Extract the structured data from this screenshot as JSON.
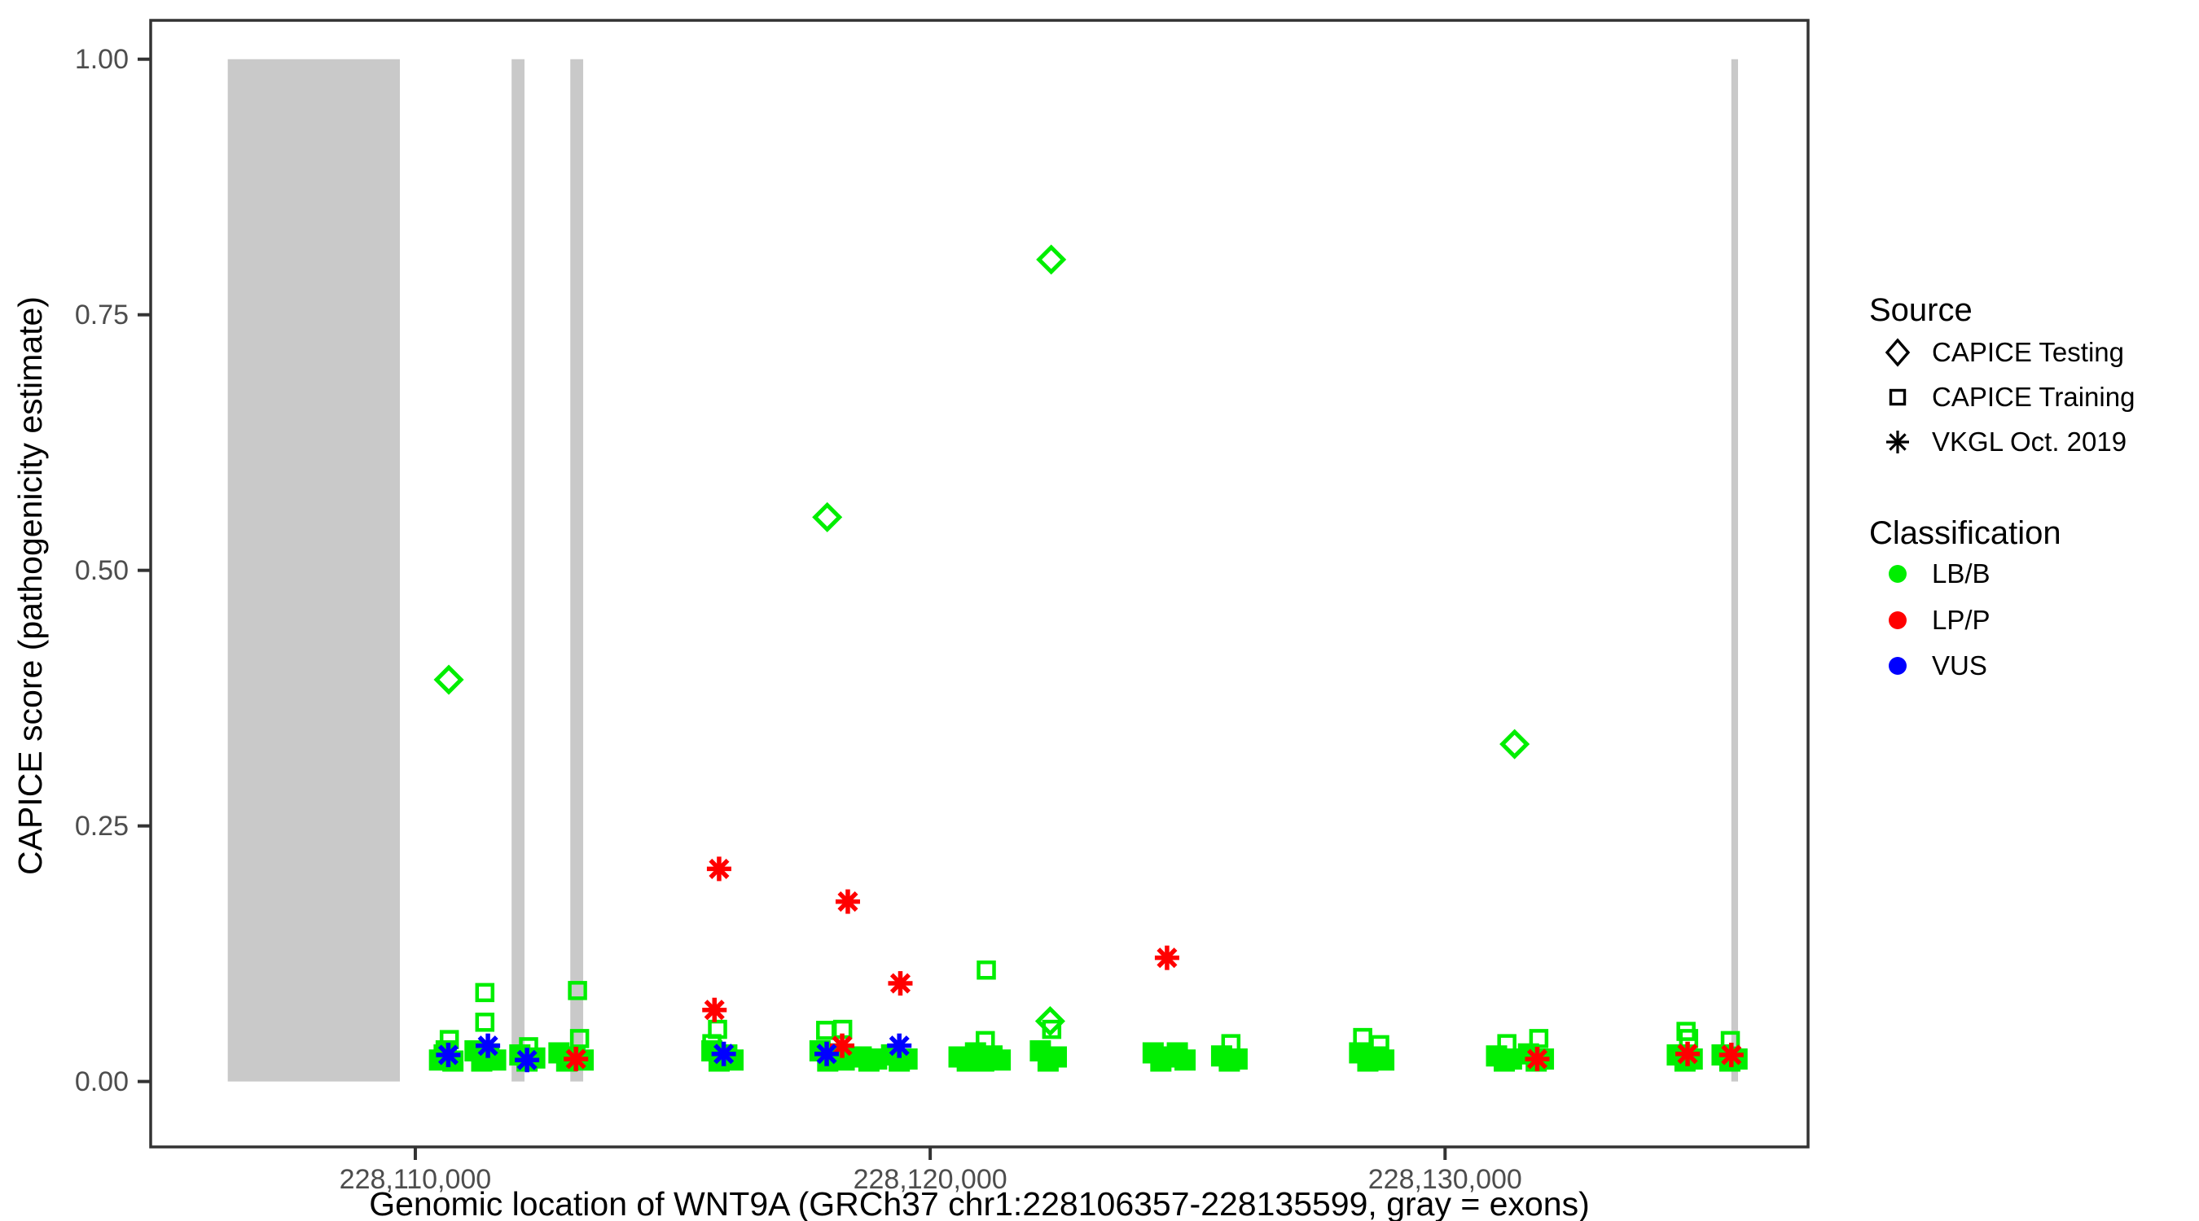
{
  "chart_data": {
    "type": "scatter",
    "title": "",
    "xlabel": "Genomic location of WNT9A (GRCh37 chr1:228106357-228135599, gray = exons)",
    "ylabel": "CAPICE score (pathogenicity estimate)",
    "x_axis": {
      "min": 228104860,
      "max": 228137050,
      "ticks": [
        {
          "value": 228110000,
          "label": "228,110,000"
        },
        {
          "value": 228120000,
          "label": "228,120,000"
        },
        {
          "value": 228130000,
          "label": "228,130,000"
        }
      ]
    },
    "y_axis": {
      "min": -0.064,
      "max": 1.038,
      "ticks": [
        {
          "value": 0.0,
          "label": "0.00"
        },
        {
          "value": 0.25,
          "label": "0.25"
        },
        {
          "value": 0.5,
          "label": "0.50"
        },
        {
          "value": 0.75,
          "label": "0.75"
        },
        {
          "value": 1.0,
          "label": "1.00"
        }
      ]
    },
    "exon_color": "#c9c9c9",
    "exons": [
      {
        "start": 228106357,
        "end": 228109700
      },
      {
        "start": 228111870,
        "end": 228112120
      },
      {
        "start": 228113010,
        "end": 228113260
      },
      {
        "start": 228135560,
        "end": 228135690
      }
    ],
    "classification_colors": {
      "LB/B": "#00ee00",
      "LP/P": "#ff0000",
      "VUS": "#0000ff"
    },
    "points": [
      {
        "bp": 228110650,
        "score": 0.393,
        "source": "testing",
        "class": "LB/B"
      },
      {
        "bp": 228118000,
        "score": 0.552,
        "source": "testing",
        "class": "LB/B"
      },
      {
        "bp": 228122350,
        "score": 0.804,
        "source": "testing",
        "class": "LB/B"
      },
      {
        "bp": 228131350,
        "score": 0.33,
        "source": "testing",
        "class": "LB/B"
      },
      {
        "bp": 228122330,
        "score": 0.059,
        "source": "testing",
        "class": "LB/B"
      },
      {
        "bp": 228115900,
        "score": 0.208,
        "source": "vkgl",
        "class": "LP/P"
      },
      {
        "bp": 228118400,
        "score": 0.176,
        "source": "vkgl",
        "class": "LP/P"
      },
      {
        "bp": 228119420,
        "score": 0.096,
        "source": "vkgl",
        "class": "LP/P"
      },
      {
        "bp": 228124600,
        "score": 0.121,
        "source": "vkgl",
        "class": "LP/P"
      },
      {
        "bp": 228115810,
        "score": 0.07,
        "source": "vkgl",
        "class": "LP/P"
      },
      {
        "bp": 228113120,
        "score": 0.022,
        "source": "vkgl",
        "class": "LP/P"
      },
      {
        "bp": 228118290,
        "score": 0.035,
        "source": "vkgl",
        "class": "LP/P"
      },
      {
        "bp": 228131790,
        "score": 0.022,
        "source": "vkgl",
        "class": "LP/P"
      },
      {
        "bp": 228134710,
        "score": 0.027,
        "source": "vkgl",
        "class": "LP/P"
      },
      {
        "bp": 228135560,
        "score": 0.026,
        "source": "vkgl",
        "class": "LP/P"
      },
      {
        "bp": 228110640,
        "score": 0.026,
        "source": "vkgl",
        "class": "VUS"
      },
      {
        "bp": 228111410,
        "score": 0.035,
        "source": "vkgl",
        "class": "VUS"
      },
      {
        "bp": 228112170,
        "score": 0.021,
        "source": "vkgl",
        "class": "VUS"
      },
      {
        "bp": 228115990,
        "score": 0.027,
        "source": "vkgl",
        "class": "VUS"
      },
      {
        "bp": 228117990,
        "score": 0.027,
        "source": "vkgl",
        "class": "VUS"
      },
      {
        "bp": 228119400,
        "score": 0.035,
        "source": "vkgl",
        "class": "VUS"
      },
      {
        "bp": 228110660,
        "score": 0.041,
        "source": "training",
        "class": "LB/B"
      },
      {
        "bp": 228111350,
        "score": 0.087,
        "source": "training",
        "class": "LB/B"
      },
      {
        "bp": 228111350,
        "score": 0.058,
        "source": "training",
        "class": "LB/B"
      },
      {
        "bp": 228112200,
        "score": 0.034,
        "source": "training",
        "class": "LB/B"
      },
      {
        "bp": 228113150,
        "score": 0.089,
        "source": "training",
        "class": "LB/B"
      },
      {
        "bp": 228113190,
        "score": 0.042,
        "source": "training",
        "class": "LB/B"
      },
      {
        "bp": 228115870,
        "score": 0.051,
        "source": "training",
        "class": "LB/B"
      },
      {
        "bp": 228115760,
        "score": 0.037,
        "source": "training",
        "class": "LB/B"
      },
      {
        "bp": 228117970,
        "score": 0.05,
        "source": "training",
        "class": "LB/B"
      },
      {
        "bp": 228118300,
        "score": 0.051,
        "source": "training",
        "class": "LB/B"
      },
      {
        "bp": 228121090,
        "score": 0.109,
        "source": "training",
        "class": "LB/B"
      },
      {
        "bp": 228121070,
        "score": 0.04,
        "source": "training",
        "class": "LB/B"
      },
      {
        "bp": 228122360,
        "score": 0.051,
        "source": "training",
        "class": "LB/B"
      },
      {
        "bp": 228125840,
        "score": 0.037,
        "source": "training",
        "class": "LB/B"
      },
      {
        "bp": 228128400,
        "score": 0.043,
        "source": "training",
        "class": "LB/B"
      },
      {
        "bp": 228128730,
        "score": 0.036,
        "source": "training",
        "class": "LB/B"
      },
      {
        "bp": 228131200,
        "score": 0.037,
        "source": "training",
        "class": "LB/B"
      },
      {
        "bp": 228131820,
        "score": 0.042,
        "source": "training",
        "class": "LB/B"
      },
      {
        "bp": 228134680,
        "score": 0.049,
        "source": "training",
        "class": "LB/B"
      },
      {
        "bp": 228134730,
        "score": 0.042,
        "source": "training",
        "class": "LB/B"
      },
      {
        "bp": 228135540,
        "score": 0.04,
        "source": "training",
        "class": "LB/B"
      },
      {
        "bp": 228110470,
        "score": 0.021,
        "source": "training",
        "class": "LB/B",
        "dense": true
      },
      {
        "bp": 228110600,
        "score": 0.03,
        "source": "training",
        "class": "LB/B",
        "dense": true
      },
      {
        "bp": 228110730,
        "score": 0.02,
        "source": "training",
        "class": "LB/B",
        "dense": true
      },
      {
        "bp": 228110560,
        "score": 0.026,
        "source": "training",
        "class": "LB/B",
        "dense": true
      },
      {
        "bp": 228111160,
        "score": 0.03,
        "source": "training",
        "class": "LB/B",
        "dense": true
      },
      {
        "bp": 228111290,
        "score": 0.02,
        "source": "training",
        "class": "LB/B",
        "dense": true
      },
      {
        "bp": 228111430,
        "score": 0.027,
        "source": "training",
        "class": "LB/B",
        "dense": true
      },
      {
        "bp": 228111560,
        "score": 0.021,
        "source": "training",
        "class": "LB/B",
        "dense": true
      },
      {
        "bp": 228111360,
        "score": 0.023,
        "source": "training",
        "class": "LB/B",
        "dense": true
      },
      {
        "bp": 228112030,
        "score": 0.026,
        "source": "training",
        "class": "LB/B",
        "dense": true
      },
      {
        "bp": 228112170,
        "score": 0.02,
        "source": "training",
        "class": "LB/B",
        "dense": true
      },
      {
        "bp": 228112320,
        "score": 0.023,
        "source": "training",
        "class": "LB/B",
        "dense": true
      },
      {
        "bp": 228112790,
        "score": 0.028,
        "source": "training",
        "class": "LB/B",
        "dense": true
      },
      {
        "bp": 228112940,
        "score": 0.02,
        "source": "training",
        "class": "LB/B",
        "dense": true
      },
      {
        "bp": 228113100,
        "score": 0.024,
        "source": "training",
        "class": "LB/B",
        "dense": true
      },
      {
        "bp": 228113260,
        "score": 0.021,
        "source": "training",
        "class": "LB/B",
        "dense": true
      },
      {
        "bp": 228115760,
        "score": 0.03,
        "source": "training",
        "class": "LB/B",
        "dense": true
      },
      {
        "bp": 228115900,
        "score": 0.02,
        "source": "training",
        "class": "LB/B",
        "dense": true
      },
      {
        "bp": 228116050,
        "score": 0.026,
        "source": "training",
        "class": "LB/B",
        "dense": true
      },
      {
        "bp": 228116170,
        "score": 0.021,
        "source": "training",
        "class": "LB/B",
        "dense": true
      },
      {
        "bp": 228117860,
        "score": 0.03,
        "source": "training",
        "class": "LB/B",
        "dense": true
      },
      {
        "bp": 228118010,
        "score": 0.02,
        "source": "training",
        "class": "LB/B",
        "dense": true
      },
      {
        "bp": 228118170,
        "score": 0.027,
        "source": "training",
        "class": "LB/B",
        "dense": true
      },
      {
        "bp": 228118330,
        "score": 0.021,
        "source": "training",
        "class": "LB/B",
        "dense": true
      },
      {
        "bp": 228118470,
        "score": 0.024,
        "source": "training",
        "class": "LB/B",
        "dense": true
      },
      {
        "bp": 228118660,
        "score": 0.024,
        "source": "training",
        "class": "LB/B",
        "dense": true
      },
      {
        "bp": 228118810,
        "score": 0.02,
        "source": "training",
        "class": "LB/B",
        "dense": true
      },
      {
        "bp": 228118960,
        "score": 0.022,
        "source": "training",
        "class": "LB/B",
        "dense": true
      },
      {
        "bp": 228119250,
        "score": 0.026,
        "source": "training",
        "class": "LB/B",
        "dense": true
      },
      {
        "bp": 228119400,
        "score": 0.02,
        "source": "training",
        "class": "LB/B",
        "dense": true
      },
      {
        "bp": 228119550,
        "score": 0.022,
        "source": "training",
        "class": "LB/B",
        "dense": true
      },
      {
        "bp": 228120560,
        "score": 0.024,
        "source": "training",
        "class": "LB/B",
        "dense": true
      },
      {
        "bp": 228120720,
        "score": 0.02,
        "source": "training",
        "class": "LB/B",
        "dense": true
      },
      {
        "bp": 228120880,
        "score": 0.028,
        "source": "training",
        "class": "LB/B",
        "dense": true
      },
      {
        "bp": 228121040,
        "score": 0.02,
        "source": "training",
        "class": "LB/B",
        "dense": true
      },
      {
        "bp": 228121200,
        "score": 0.025,
        "source": "training",
        "class": "LB/B",
        "dense": true
      },
      {
        "bp": 228121360,
        "score": 0.021,
        "source": "training",
        "class": "LB/B",
        "dense": true
      },
      {
        "bp": 228122140,
        "score": 0.03,
        "source": "training",
        "class": "LB/B",
        "dense": true
      },
      {
        "bp": 228122290,
        "score": 0.02,
        "source": "training",
        "class": "LB/B",
        "dense": true
      },
      {
        "bp": 228122450,
        "score": 0.024,
        "source": "training",
        "class": "LB/B",
        "dense": true
      },
      {
        "bp": 228124330,
        "score": 0.028,
        "source": "training",
        "class": "LB/B",
        "dense": true
      },
      {
        "bp": 228124480,
        "score": 0.02,
        "source": "training",
        "class": "LB/B",
        "dense": true
      },
      {
        "bp": 228124640,
        "score": 0.024,
        "source": "training",
        "class": "LB/B",
        "dense": true
      },
      {
        "bp": 228124800,
        "score": 0.028,
        "source": "training",
        "class": "LB/B",
        "dense": true
      },
      {
        "bp": 228124950,
        "score": 0.021,
        "source": "training",
        "class": "LB/B",
        "dense": true
      },
      {
        "bp": 228125660,
        "score": 0.025,
        "source": "training",
        "class": "LB/B",
        "dense": true
      },
      {
        "bp": 228125810,
        "score": 0.02,
        "source": "training",
        "class": "LB/B",
        "dense": true
      },
      {
        "bp": 228125960,
        "score": 0.022,
        "source": "training",
        "class": "LB/B",
        "dense": true
      },
      {
        "bp": 228128340,
        "score": 0.028,
        "source": "training",
        "class": "LB/B",
        "dense": true
      },
      {
        "bp": 228128500,
        "score": 0.02,
        "source": "training",
        "class": "LB/B",
        "dense": true
      },
      {
        "bp": 228128660,
        "score": 0.024,
        "source": "training",
        "class": "LB/B",
        "dense": true
      },
      {
        "bp": 228128810,
        "score": 0.021,
        "source": "training",
        "class": "LB/B",
        "dense": true
      },
      {
        "bp": 228131000,
        "score": 0.025,
        "source": "training",
        "class": "LB/B",
        "dense": true
      },
      {
        "bp": 228131150,
        "score": 0.02,
        "source": "training",
        "class": "LB/B",
        "dense": true
      },
      {
        "bp": 228131290,
        "score": 0.022,
        "source": "training",
        "class": "LB/B",
        "dense": true
      },
      {
        "bp": 228131620,
        "score": 0.027,
        "source": "training",
        "class": "LB/B",
        "dense": true
      },
      {
        "bp": 228131770,
        "score": 0.02,
        "source": "training",
        "class": "LB/B",
        "dense": true
      },
      {
        "bp": 228131910,
        "score": 0.022,
        "source": "training",
        "class": "LB/B",
        "dense": true
      },
      {
        "bp": 228134510,
        "score": 0.026,
        "source": "training",
        "class": "LB/B",
        "dense": true
      },
      {
        "bp": 228134660,
        "score": 0.02,
        "source": "training",
        "class": "LB/B",
        "dense": true
      },
      {
        "bp": 228134800,
        "score": 0.022,
        "source": "training",
        "class": "LB/B",
        "dense": true
      },
      {
        "bp": 228135380,
        "score": 0.026,
        "source": "training",
        "class": "LB/B",
        "dense": true
      },
      {
        "bp": 228135530,
        "score": 0.02,
        "source": "training",
        "class": "LB/B",
        "dense": true
      },
      {
        "bp": 228135670,
        "score": 0.022,
        "source": "training",
        "class": "LB/B",
        "dense": true
      }
    ]
  },
  "legend": {
    "source": {
      "title": "Source",
      "items": [
        {
          "label": "CAPICE Testing",
          "marker": "diamond-icon"
        },
        {
          "label": "CAPICE Training",
          "marker": "square-icon"
        },
        {
          "label": "VKGL Oct. 2019",
          "marker": "asterisk-icon"
        }
      ]
    },
    "classification": {
      "title": "Classification",
      "items": [
        {
          "label": "LB/B",
          "color": "#00ee00"
        },
        {
          "label": "LP/P",
          "color": "#ff0000"
        },
        {
          "label": "VUS",
          "color": "#0000ff"
        }
      ]
    }
  },
  "style": {
    "border_color": "#333333",
    "tick_color": "#333333",
    "tick_label_color": "#4d4d4d"
  }
}
